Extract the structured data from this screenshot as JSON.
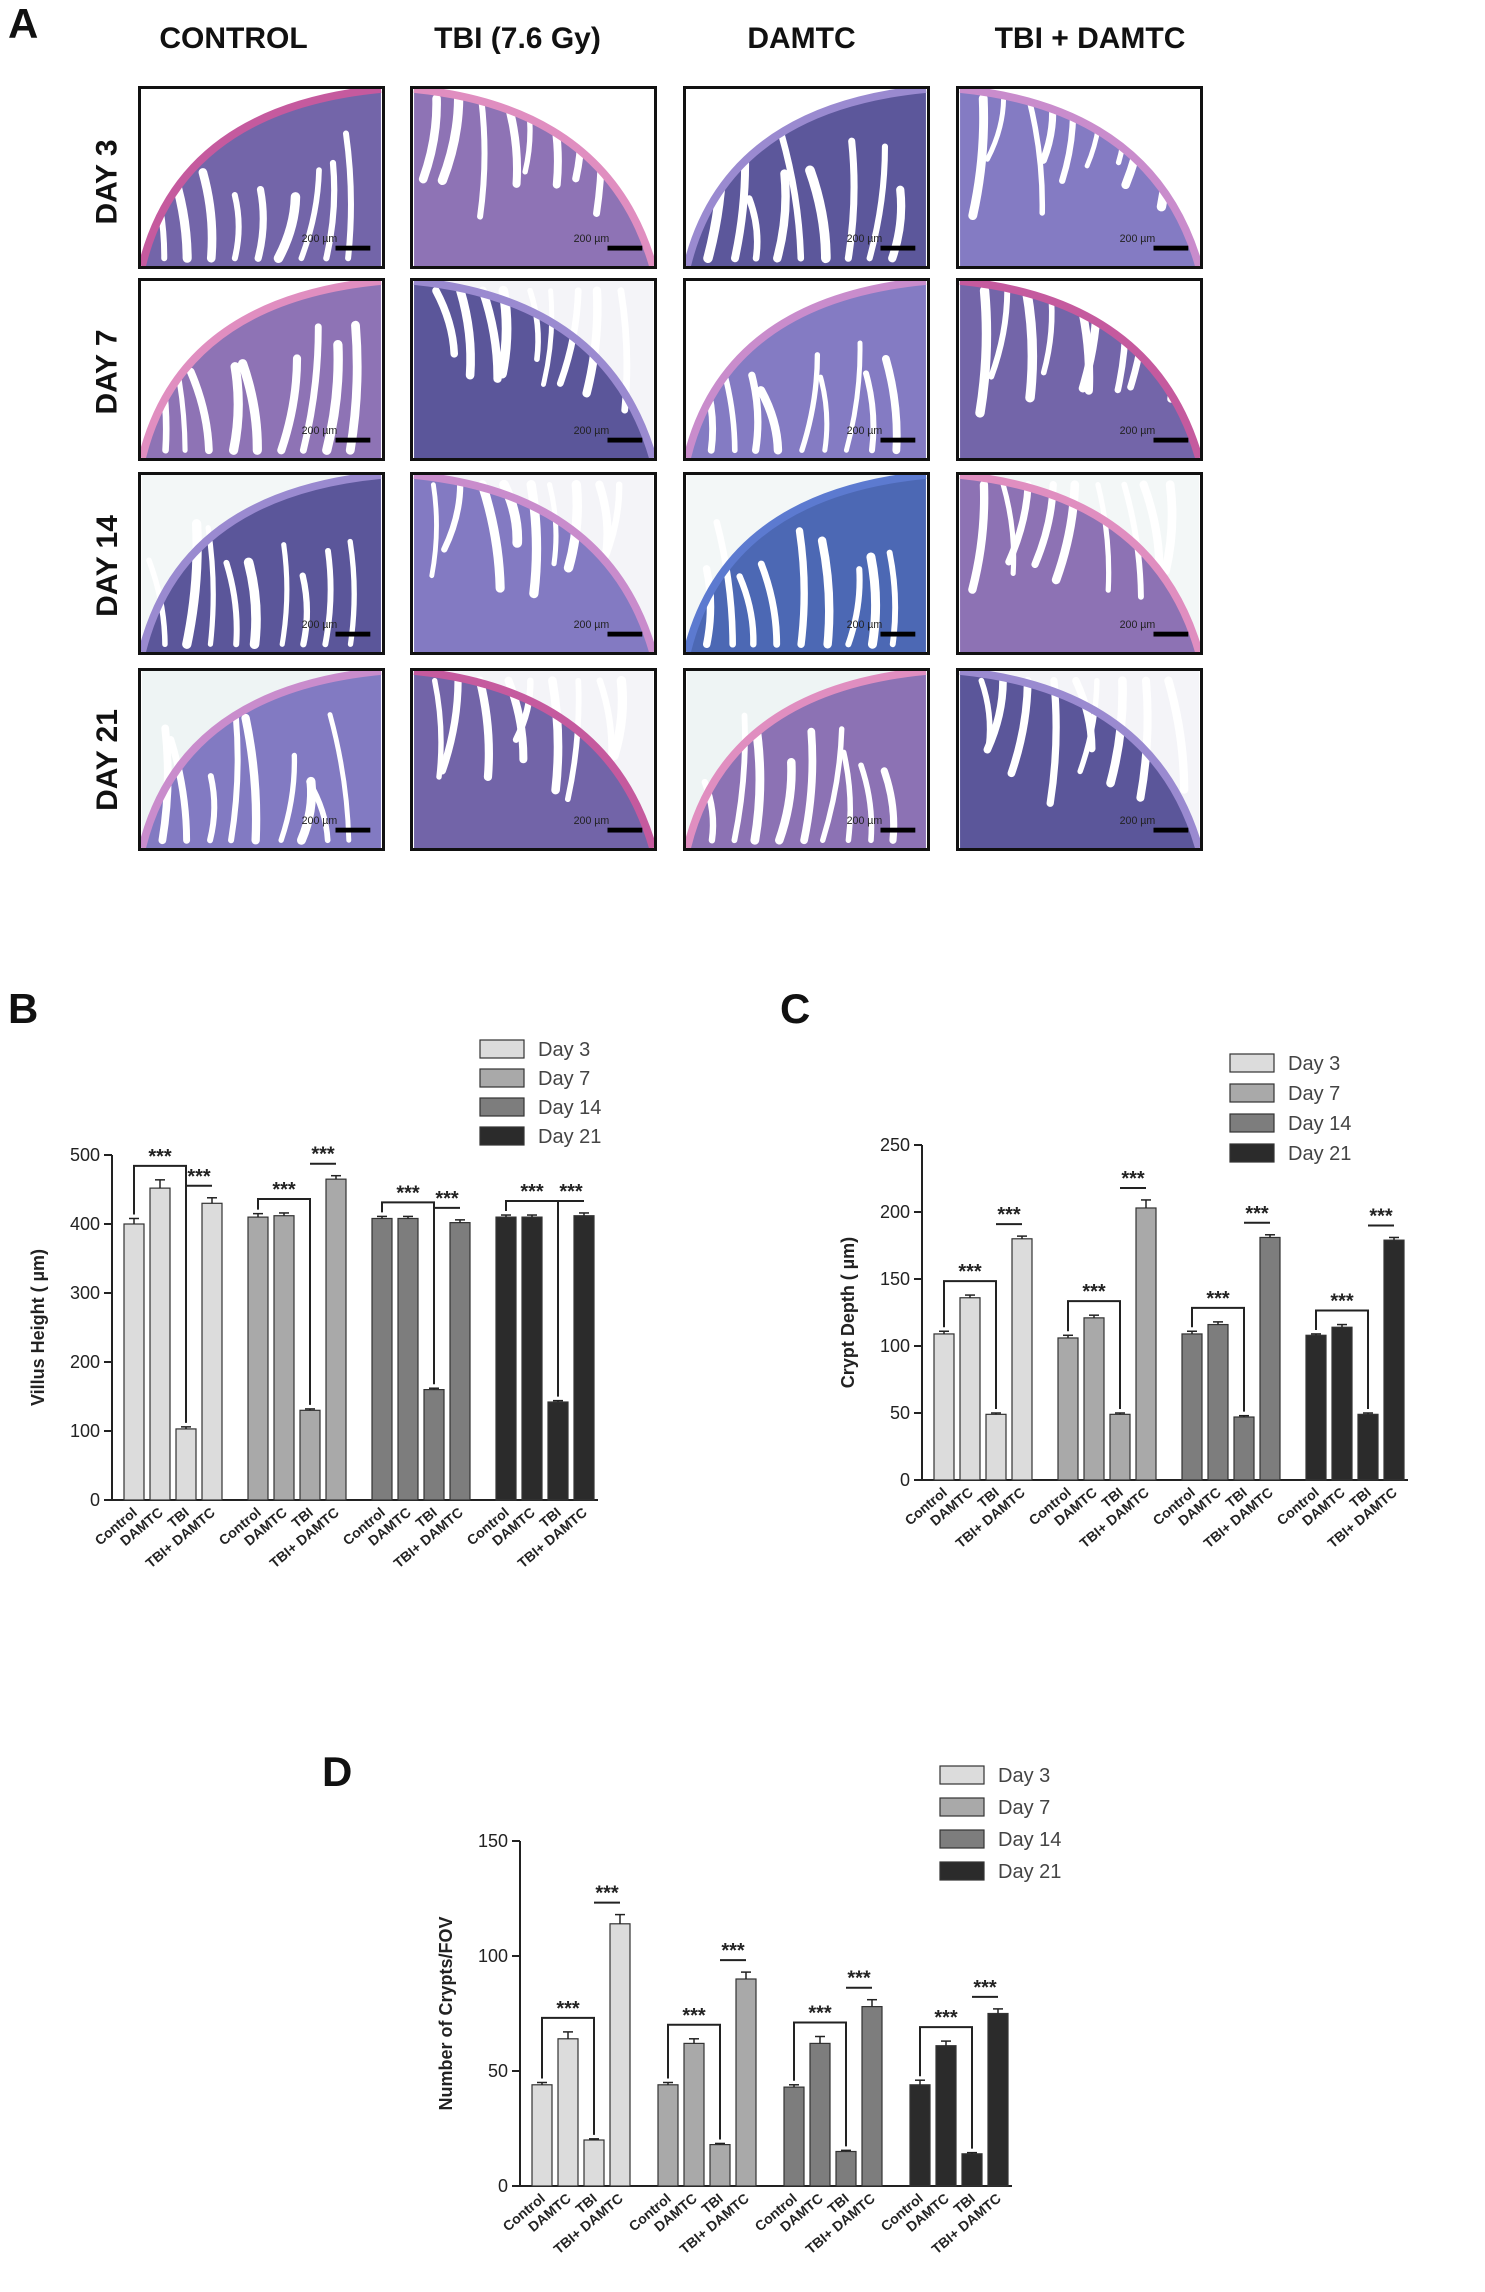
{
  "panel_a": {
    "letter": "A",
    "columns": [
      "CONTROL",
      "TBI (7.6 Gy)",
      "DAMTC",
      "TBI + DAMTC"
    ],
    "rows": [
      "DAY 3",
      "DAY 7",
      "DAY 14",
      "DAY 21"
    ],
    "scale_bar": "200 µm"
  },
  "chart_data": [
    {
      "panel": "B",
      "type": "bar",
      "ylabel": "Villus Height ( µm)",
      "ylim": [
        0,
        500
      ],
      "yticks": [
        0,
        100,
        200,
        300,
        400,
        500
      ],
      "categories": [
        "Control",
        "DAMTC",
        "TBI",
        "TBI+ DAMTC"
      ],
      "legend": [
        "Day 3",
        "Day 7",
        "Day 14",
        "Day 21"
      ],
      "legend_position": "top-right",
      "series": [
        {
          "name": "Day 3",
          "color": "#dcdcdc",
          "values": [
            400,
            452,
            103,
            430
          ],
          "errors": [
            8,
            12,
            3,
            8
          ]
        },
        {
          "name": "Day 7",
          "color": "#a9a9a9",
          "values": [
            410,
            412,
            130,
            465
          ],
          "errors": [
            5,
            4,
            2,
            5
          ]
        },
        {
          "name": "Day 14",
          "color": "#7d7d7d",
          "values": [
            408,
            408,
            160,
            402
          ],
          "errors": [
            3,
            3,
            2,
            4
          ]
        },
        {
          "name": "Day 21",
          "color": "#2b2b2b",
          "values": [
            410,
            410,
            142,
            412
          ],
          "errors": [
            3,
            3,
            2,
            4
          ]
        }
      ],
      "significance": "***"
    },
    {
      "panel": "C",
      "type": "bar",
      "ylabel": "Crypt Depth ( µm)",
      "ylim": [
        0,
        250
      ],
      "yticks": [
        0,
        50,
        100,
        150,
        200,
        250
      ],
      "categories": [
        "Control",
        "DAMTC",
        "TBI",
        "TBI+ DAMTC"
      ],
      "legend": [
        "Day 3",
        "Day 7",
        "Day 14",
        "Day 21"
      ],
      "legend_position": "top-right",
      "series": [
        {
          "name": "Day 3",
          "color": "#dcdcdc",
          "values": [
            109,
            136,
            49,
            180
          ],
          "errors": [
            2,
            2,
            1,
            2
          ]
        },
        {
          "name": "Day 7",
          "color": "#a9a9a9",
          "values": [
            106,
            121,
            49,
            203
          ],
          "errors": [
            2,
            2,
            1,
            6
          ]
        },
        {
          "name": "Day 14",
          "color": "#7d7d7d",
          "values": [
            109,
            116,
            47,
            181
          ],
          "errors": [
            2,
            2,
            1,
            2
          ]
        },
        {
          "name": "Day 21",
          "color": "#2b2b2b",
          "values": [
            108,
            114,
            49,
            179
          ],
          "errors": [
            1,
            2,
            1,
            2
          ]
        }
      ],
      "significance": "***"
    },
    {
      "panel": "D",
      "type": "bar",
      "ylabel": "Number of Crypts/FOV",
      "ylim": [
        0,
        150
      ],
      "yticks": [
        0,
        50,
        100,
        150
      ],
      "categories": [
        "Control",
        "DAMTC",
        "TBI",
        "TBI+ DAMTC"
      ],
      "legend": [
        "Day 3",
        "Day 7",
        "Day 14",
        "Day 21"
      ],
      "legend_position": "top-right",
      "series": [
        {
          "name": "Day 3",
          "color": "#dcdcdc",
          "values": [
            44,
            64,
            20,
            114
          ],
          "errors": [
            1,
            3,
            0.5,
            4
          ]
        },
        {
          "name": "Day 7",
          "color": "#a9a9a9",
          "values": [
            44,
            62,
            18,
            90
          ],
          "errors": [
            1,
            2,
            0.5,
            3
          ]
        },
        {
          "name": "Day 14",
          "color": "#7d7d7d",
          "values": [
            43,
            62,
            15,
            78
          ],
          "errors": [
            1,
            3,
            0.5,
            3
          ]
        },
        {
          "name": "Day 21",
          "color": "#2b2b2b",
          "values": [
            44,
            61,
            14,
            75
          ],
          "errors": [
            2,
            2,
            0.5,
            2
          ]
        }
      ],
      "significance": "***"
    }
  ]
}
